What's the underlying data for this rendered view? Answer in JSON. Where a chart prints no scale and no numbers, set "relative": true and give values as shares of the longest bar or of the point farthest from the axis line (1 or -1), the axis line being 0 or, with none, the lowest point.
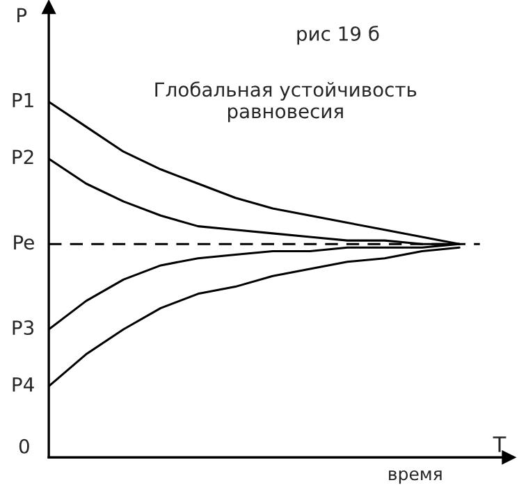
{
  "chart_data": {
    "type": "line",
    "relative": true,
    "title": "рис 19 б",
    "xlabel": "время",
    "ylabel": "P",
    "x2label": "T",
    "categories": [
      null,
      null,
      null,
      null,
      null,
      null,
      null,
      null,
      null,
      null,
      null,
      null
    ],
    "series": [
      {
        "color": "#000000",
        "values": [
          1.0,
          0.93,
          0.86,
          0.81,
          0.77,
          0.73,
          0.7,
          0.68,
          0.66,
          0.64,
          0.62,
          0.6
        ]
      },
      {
        "color": "#000000",
        "values": [
          0.84,
          0.77,
          0.72,
          0.68,
          0.65,
          0.64,
          0.63,
          0.62,
          0.61,
          0.61,
          0.6,
          0.6
        ]
      },
      {
        "color": "#000000",
        "values": [
          0.36,
          0.44,
          0.5,
          0.54,
          0.56,
          0.57,
          0.58,
          0.58,
          0.59,
          0.59,
          0.59,
          0.6
        ]
      },
      {
        "color": "#000000",
        "values": [
          0.2,
          0.29,
          0.36,
          0.42,
          0.46,
          0.48,
          0.51,
          0.53,
          0.55,
          0.56,
          0.58,
          0.59
        ]
      }
    ],
    "ref_lines": [
      {
        "axis": "y",
        "value": 0.6,
        "label": "Pe",
        "color": "#000000",
        "line_style": "dashed"
      }
    ],
    "annotations": [
      "Глобальная устойчивость равновесия",
      "P1",
      "P2",
      "P3",
      "P4",
      "0"
    ]
  }
}
